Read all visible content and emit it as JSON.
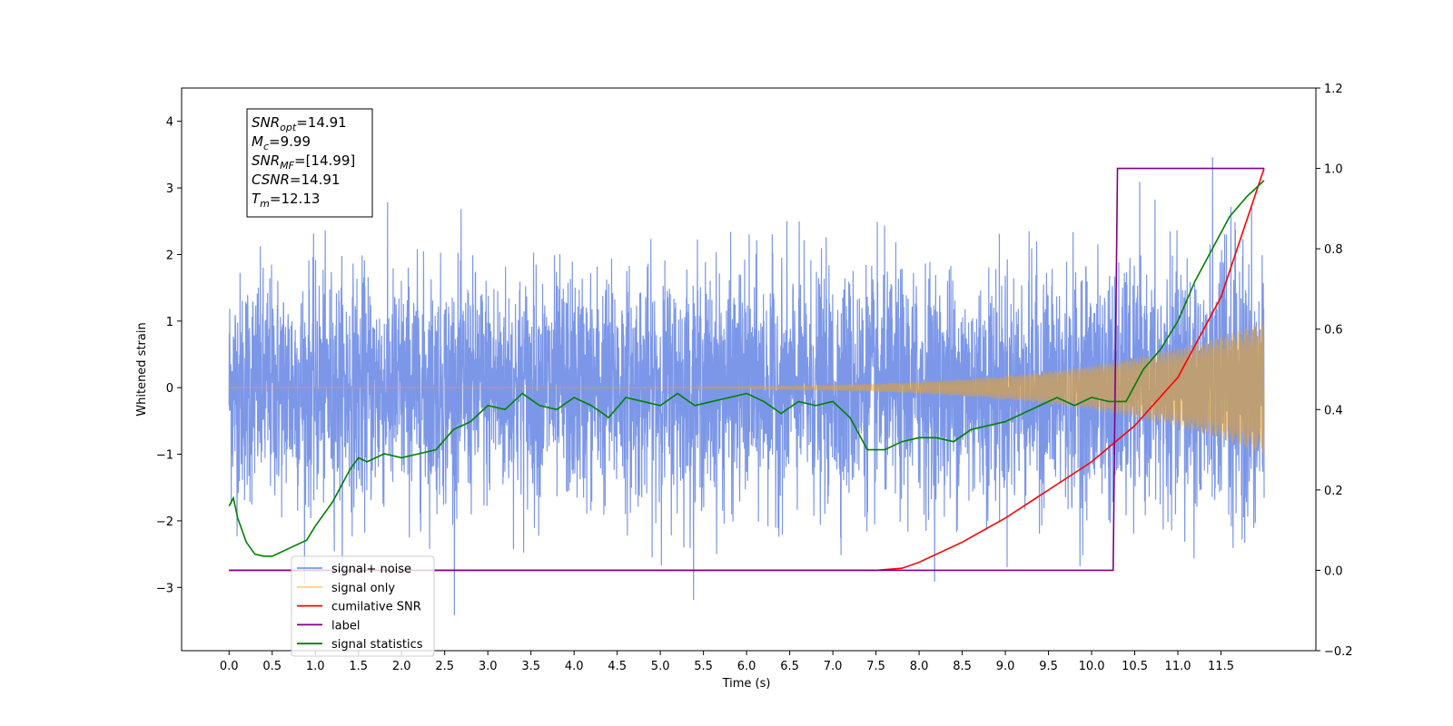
{
  "chart_data": {
    "type": "line",
    "xlabel": "Time (s)",
    "ylabel": "Whitened strain",
    "xlim": [
      -0.55,
      12.6
    ],
    "ylim": [
      -3.95,
      4.5
    ],
    "ylim_right": [
      -0.2,
      1.2
    ],
    "x_ticks": [
      "0.0",
      "0.5",
      "1.0",
      "1.5",
      "2.0",
      "2.5",
      "3.0",
      "3.5",
      "4.0",
      "4.5",
      "5.0",
      "5.5",
      "6.0",
      "6.5",
      "7.0",
      "7.5",
      "8.0",
      "8.5",
      "9.0",
      "9.5",
      "10.0",
      "10.5",
      "11.0",
      "11.5"
    ],
    "y_ticks_left": [
      "−3",
      "−2",
      "−1",
      "0",
      "1",
      "2",
      "3",
      "4"
    ],
    "y_ticks_right": [
      "−0.2",
      "0.0",
      "0.2",
      "0.4",
      "0.6",
      "0.8",
      "1.0",
      "1.2"
    ],
    "legend_position": "lower-left",
    "info_box": {
      "lines": [
        {
          "base": "SNR",
          "sub": "opt",
          "value": "=14.91"
        },
        {
          "base": "M",
          "sub": "c",
          "value": "=9.99"
        },
        {
          "base": "SNR",
          "sub": "MF",
          "value": "=[14.99]"
        },
        {
          "base": "CSNR",
          "sub": "",
          "value": "=14.91"
        },
        {
          "base": "T",
          "sub": "m",
          "value": "=12.13"
        }
      ]
    },
    "series": [
      {
        "name": "signal+ noise",
        "color": "#5b7de2",
        "axis": "left",
        "x_range": [
          0.0,
          12.0
        ],
        "noise_sigma": 0.85,
        "envelope_start": 1.0,
        "envelope_end": 1.9
      },
      {
        "name": "signal only",
        "color": "#ffa500",
        "axis": "left",
        "x_range": [
          0.0,
          12.0
        ],
        "amplitude_at_end": 1.0
      },
      {
        "name": "cumilative SNR",
        "color": "#ff0000",
        "axis": "right",
        "x": [
          0.0,
          7.5,
          7.8,
          8.0,
          8.5,
          9.0,
          9.5,
          10.0,
          10.5,
          11.0,
          11.5,
          12.0
        ],
        "y": [
          0.0,
          0.0,
          0.005,
          0.02,
          0.07,
          0.13,
          0.2,
          0.27,
          0.36,
          0.48,
          0.68,
          1.0
        ]
      },
      {
        "name": "label",
        "color": "#800080",
        "axis": "right",
        "x": [
          0.0,
          10.25,
          10.3,
          12.0
        ],
        "y": [
          0.0,
          0.0,
          1.0,
          1.0
        ]
      },
      {
        "name": "signal statistics",
        "color": "#008000",
        "axis": "right",
        "x": [
          0.0,
          0.05,
          0.1,
          0.2,
          0.3,
          0.4,
          0.5,
          0.6,
          0.7,
          0.9,
          1.0,
          1.2,
          1.4,
          1.5,
          1.6,
          1.8,
          2.0,
          2.2,
          2.4,
          2.6,
          2.8,
          3.0,
          3.2,
          3.4,
          3.6,
          3.8,
          4.0,
          4.2,
          4.4,
          4.6,
          4.8,
          5.0,
          5.2,
          5.4,
          5.6,
          5.8,
          6.0,
          6.2,
          6.4,
          6.6,
          6.8,
          7.0,
          7.2,
          7.4,
          7.6,
          7.8,
          8.0,
          8.2,
          8.4,
          8.6,
          8.8,
          9.0,
          9.2,
          9.4,
          9.6,
          9.8,
          10.0,
          10.2,
          10.4,
          10.6,
          10.8,
          11.0,
          11.2,
          11.4,
          11.6,
          11.8,
          12.0
        ],
        "y": [
          0.16,
          0.18,
          0.13,
          0.07,
          0.04,
          0.035,
          0.035,
          0.045,
          0.055,
          0.075,
          0.11,
          0.17,
          0.25,
          0.28,
          0.27,
          0.29,
          0.28,
          0.29,
          0.3,
          0.35,
          0.37,
          0.41,
          0.4,
          0.44,
          0.41,
          0.4,
          0.43,
          0.41,
          0.38,
          0.43,
          0.42,
          0.41,
          0.44,
          0.41,
          0.42,
          0.43,
          0.44,
          0.42,
          0.39,
          0.42,
          0.41,
          0.42,
          0.38,
          0.3,
          0.3,
          0.32,
          0.33,
          0.33,
          0.32,
          0.35,
          0.36,
          0.37,
          0.39,
          0.41,
          0.43,
          0.41,
          0.43,
          0.42,
          0.42,
          0.5,
          0.55,
          0.62,
          0.72,
          0.8,
          0.88,
          0.93,
          0.97
        ]
      }
    ]
  }
}
